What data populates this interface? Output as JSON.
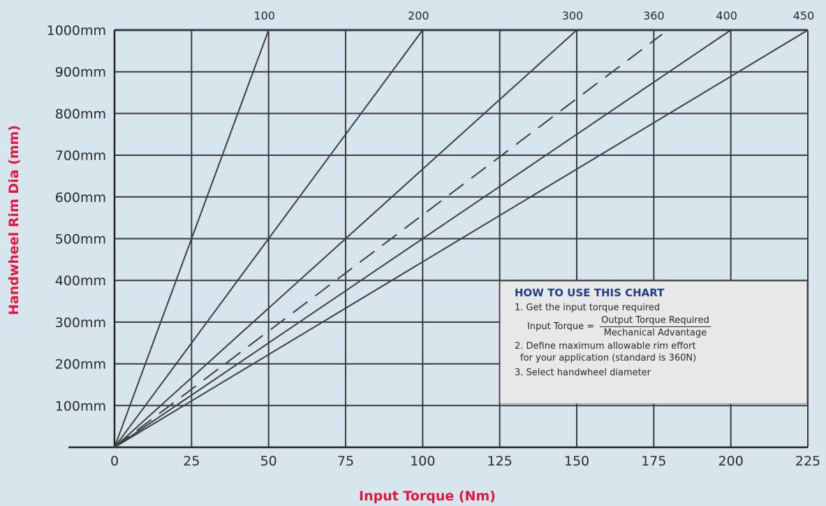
{
  "chart_data": {
    "type": "line",
    "xlabel": "Input Torque (Nm)",
    "ylabel": "Handwheel Rim Dia (mm)",
    "xlim": [
      0,
      225
    ],
    "ylim": [
      0,
      1100
    ],
    "x_ticks": [
      "0",
      "25",
      "50",
      "75",
      "100",
      "125",
      "150",
      "175",
      "200",
      "225"
    ],
    "y_ticks": [
      "100mm",
      "200mm",
      "300mm",
      "400mm",
      "500mm",
      "600mm",
      "700mm",
      "800mm",
      "900mm",
      "1000mm"
    ],
    "grid": true,
    "series": [
      {
        "name": "100",
        "x": [
          0,
          50
        ],
        "y": [
          0,
          1000
        ],
        "dashed": false
      },
      {
        "name": "200",
        "x": [
          0,
          100
        ],
        "y": [
          0,
          1000
        ],
        "dashed": false
      },
      {
        "name": "300",
        "x": [
          0,
          150
        ],
        "y": [
          0,
          1000
        ],
        "dashed": false
      },
      {
        "name": "360",
        "x": [
          0,
          180
        ],
        "y": [
          0,
          1000
        ],
        "dashed": true
      },
      {
        "name": "400",
        "x": [
          0,
          200
        ],
        "y": [
          0,
          1000
        ],
        "dashed": false
      },
      {
        "name": "450",
        "x": [
          0,
          225
        ],
        "y": [
          0,
          1000
        ],
        "dashed": false
      }
    ]
  },
  "howto": {
    "title": "HOW TO USE THIS CHART",
    "step1": "1. Get the input torque required",
    "formula_lhs": "Input Torque =",
    "formula_num": "Output Torque Required",
    "formula_den": "Mechanical Advantage",
    "step2_line1": "2. Define maximum allowable rim effort",
    "step2_line2": "for your application (standard is 360N)",
    "step3": "3. Select handwheel diameter"
  },
  "colors": {
    "background": "#d6e5ee",
    "grid": "#3a3a3a",
    "series": "#3f3f3f",
    "axis_title": "#e0173f",
    "howto_title": "#1f3f8a"
  }
}
